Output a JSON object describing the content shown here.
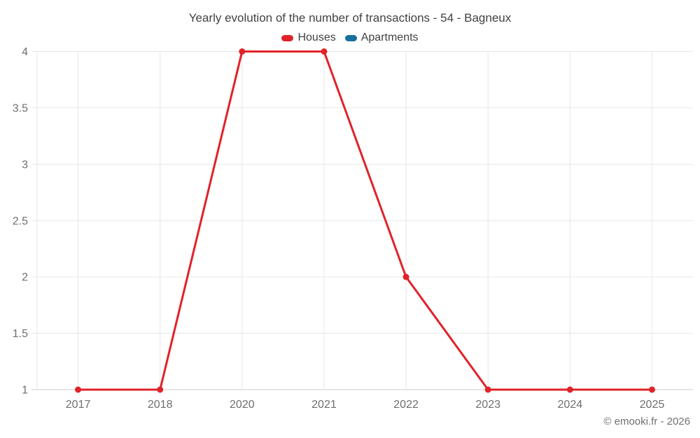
{
  "footer": {
    "copyright": "© emooki.fr - 2026"
  },
  "chart_data": {
    "type": "line",
    "title": "Yearly evolution of the number of transactions - 54 - Bagneux",
    "categories": [
      "2017",
      "2018",
      "2020",
      "2021",
      "2022",
      "2023",
      "2024",
      "2025"
    ],
    "series": [
      {
        "name": "Houses",
        "color": "#e02329",
        "marker": "circle",
        "values": [
          1,
          1,
          4,
          4,
          2,
          1,
          1,
          1
        ]
      },
      {
        "name": "Apartments",
        "color": "#17709e",
        "marker": "circle",
        "values": []
      }
    ],
    "xlabel": "",
    "ylabel": "",
    "ylim": [
      1,
      4
    ],
    "yticks": [
      1,
      1.5,
      2,
      2.5,
      3,
      3.5,
      4
    ],
    "grid": true,
    "legend_position": "top",
    "colors": {
      "grid": "#e6e6e6",
      "axis_line": "#cccccc",
      "tick_label": "#6f6f6f",
      "title_text": "#424242"
    }
  }
}
